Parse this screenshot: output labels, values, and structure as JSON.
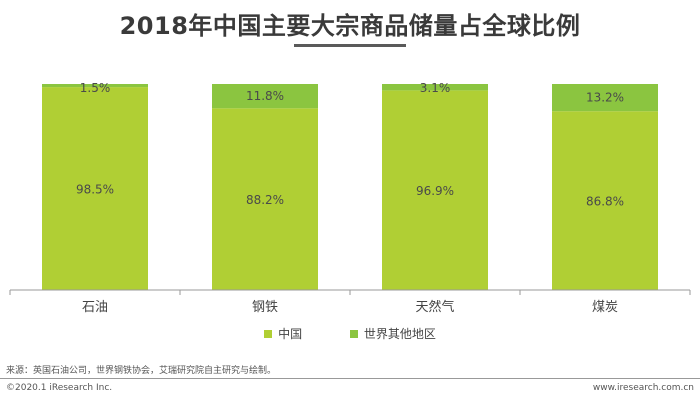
{
  "title": "2018年中国主要大宗商品储量占全球比例",
  "colors": {
    "china": "#b0cf34",
    "rest": "#8bc540"
  },
  "chart_data": {
    "type": "bar",
    "stacked": true,
    "categories": [
      "石油",
      "钢铁",
      "天然气",
      "煤炭"
    ],
    "series": [
      {
        "name": "中国",
        "values": [
          98.5,
          88.2,
          96.9,
          86.8
        ],
        "labels": [
          "98.5%",
          "88.2%",
          "96.9%",
          "86.8%"
        ]
      },
      {
        "name": "世界其他地区",
        "values": [
          1.5,
          11.8,
          3.1,
          13.2
        ],
        "labels": [
          "1.5%",
          "11.8%",
          "3.1%",
          "13.2%"
        ]
      }
    ],
    "ylim": [
      0,
      100
    ],
    "legend_position": "bottom",
    "grid": false
  },
  "legend": [
    {
      "label": "中国",
      "color": "#b0cf34"
    },
    {
      "label": "世界其他地区",
      "color": "#8bc540"
    }
  ],
  "footer": {
    "source": "来源：英国石油公司，世界钢铁协会，艾瑞研究院自主研究与绘制。",
    "copyright": "©2020.1 iResearch Inc.",
    "website": "www.iresearch.com.cn"
  }
}
